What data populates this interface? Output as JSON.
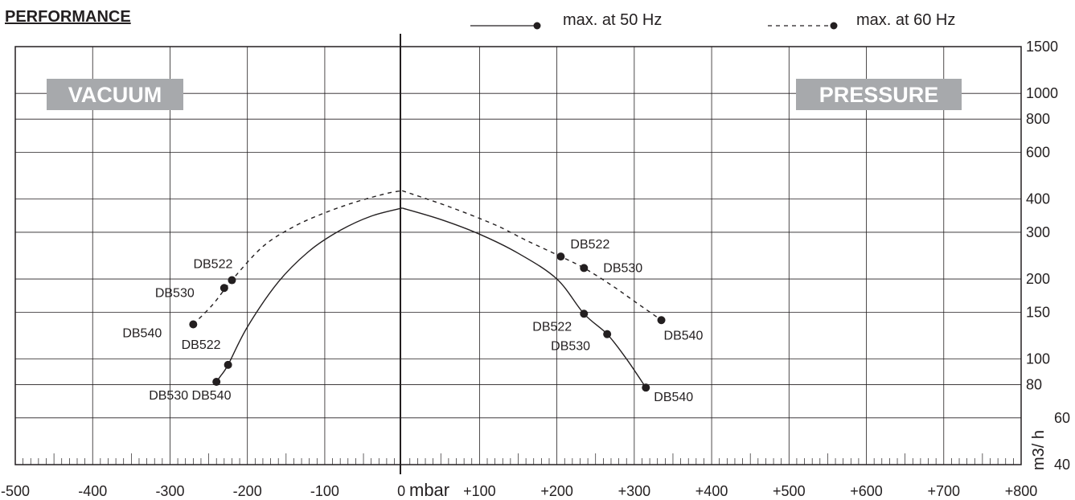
{
  "header": {
    "title": "PERFORMANCE",
    "legend_50": "max. at 50 Hz",
    "legend_60": "- - - - -",
    "legend_60_label": "max. at 60 Hz"
  },
  "badges": {
    "vacuum": "VACUUM",
    "pressure": "PRESSURE"
  },
  "colors": {
    "ink": "#231f20",
    "badge": "#a7a9ac",
    "grid": "#231f20"
  },
  "chart_data": {
    "type": "line",
    "title": "PERFORMANCE",
    "xlabel": "mbar",
    "ylabel": "m3/ h",
    "xlim": [
      -500,
      800
    ],
    "ylim": [
      40,
      1500
    ],
    "y_scale": "log",
    "grid": true,
    "legend_position": "top-right",
    "x_ticks": [
      {
        "value": -500,
        "label": "-500"
      },
      {
        "value": -400,
        "label": "-400"
      },
      {
        "value": -300,
        "label": "-300"
      },
      {
        "value": -200,
        "label": "-200"
      },
      {
        "value": -100,
        "label": "-100"
      },
      {
        "value": 0,
        "label": "0"
      },
      {
        "value": 100,
        "label": "+100"
      },
      {
        "value": 200,
        "label": "+200"
      },
      {
        "value": 300,
        "label": "+300"
      },
      {
        "value": 400,
        "label": "+400"
      },
      {
        "value": 500,
        "label": "+500"
      },
      {
        "value": 600,
        "label": "+600"
      },
      {
        "value": 700,
        "label": "+700"
      },
      {
        "value": 800,
        "label": "+800"
      }
    ],
    "y_ticks": [
      1500,
      1000,
      800,
      600,
      400,
      300,
      200,
      150,
      100,
      80,
      60,
      40
    ],
    "series": [
      {
        "name": "max. at 50 Hz",
        "style": "solid",
        "curves": [
          {
            "region": "vacuum",
            "x": [
              -240,
              -235,
              -225,
              -200,
              -160,
              -120,
              -80,
              -40,
              0
            ],
            "y": [
              82,
              86,
              95,
              132,
              195,
              255,
              305,
              345,
              370
            ]
          },
          {
            "region": "pressure",
            "x": [
              0,
              50,
              100,
              150,
              200,
              235,
              265,
              290,
              315
            ],
            "y": [
              370,
              335,
              295,
              250,
              200,
              148,
              124,
              100,
              78
            ]
          }
        ],
        "points": [
          {
            "label": "DB522",
            "x": -225,
            "y": 95
          },
          {
            "label": "DB530 DB540",
            "x": -240,
            "y": 82
          },
          {
            "label": "DB522",
            "x": 235,
            "y": 148
          },
          {
            "label": "DB530",
            "x": 265,
            "y": 124
          },
          {
            "label": "DB540",
            "x": 315,
            "y": 78
          }
        ]
      },
      {
        "name": "max. at 60 Hz",
        "style": "dashed",
        "curves": [
          {
            "region": "vacuum",
            "x": [
              -270,
              -245,
              -220,
              -180,
              -140,
              -100,
              -60,
              -20,
              0
            ],
            "y": [
              135,
              160,
              198,
              265,
              315,
              355,
              390,
              420,
              430
            ]
          },
          {
            "region": "pressure",
            "x": [
              0,
              60,
              120,
              160,
              205,
              235,
              270,
              300,
              335
            ],
            "y": [
              430,
              375,
              320,
              280,
              243,
              220,
              190,
              165,
              140
            ]
          }
        ],
        "points": [
          {
            "label": "DB522",
            "x": -220,
            "y": 198
          },
          {
            "label": "DB530",
            "x": -230,
            "y": 185
          },
          {
            "label": "DB540",
            "x": -270,
            "y": 135
          },
          {
            "label": "DB522",
            "x": 205,
            "y": 243
          },
          {
            "label": "DB530",
            "x": 235,
            "y": 220
          },
          {
            "label": "DB540",
            "x": 335,
            "y": 140
          }
        ]
      }
    ]
  }
}
